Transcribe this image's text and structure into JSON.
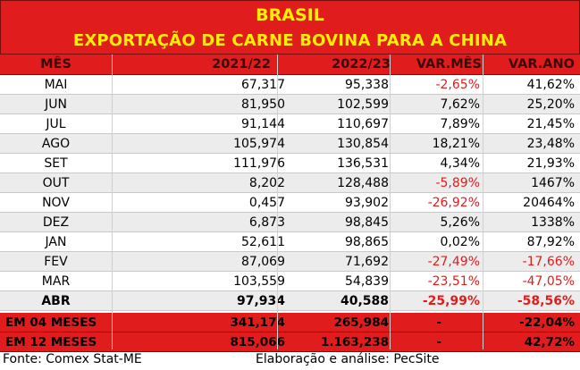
{
  "header": {
    "title": "BRASIL",
    "subtitle": "EXPORTAÇÃO DE CARNE BOVINA PARA A CHINA"
  },
  "columns": [
    "MÊS",
    "2021/22",
    "2022/23",
    "VAR.MÊS",
    "VAR.ANO"
  ],
  "rows": [
    {
      "mes": "MAI",
      "a": "67,317",
      "b": "95,338",
      "var_mes": "-2,65%",
      "var_ano": "41,62%"
    },
    {
      "mes": "JUN",
      "a": "81,950",
      "b": "102,599",
      "var_mes": "7,62%",
      "var_ano": "25,20%"
    },
    {
      "mes": "JUL",
      "a": "91,144",
      "b": "110,697",
      "var_mes": "7,89%",
      "var_ano": "21,45%"
    },
    {
      "mes": "AGO",
      "a": "105,974",
      "b": "130,854",
      "var_mes": "18,21%",
      "var_ano": "23,48%"
    },
    {
      "mes": "SET",
      "a": "111,976",
      "b": "136,531",
      "var_mes": "4,34%",
      "var_ano": "21,93%"
    },
    {
      "mes": "OUT",
      "a": "8,202",
      "b": "128,488",
      "var_mes": "-5,89%",
      "var_ano": "1467%"
    },
    {
      "mes": "NOV",
      "a": "0,457",
      "b": "93,902",
      "var_mes": "-26,92%",
      "var_ano": "20464%"
    },
    {
      "mes": "DEZ",
      "a": "6,873",
      "b": "98,845",
      "var_mes": "5,26%",
      "var_ano": "1338%"
    },
    {
      "mes": "JAN",
      "a": "52,611",
      "b": "98,865",
      "var_mes": "0,02%",
      "var_ano": "87,92%"
    },
    {
      "mes": "FEV",
      "a": "87,069",
      "b": "71,692",
      "var_mes": "-27,49%",
      "var_ano": "-17,66%"
    },
    {
      "mes": "MAR",
      "a": "103,559",
      "b": "54,839",
      "var_mes": "-23,51%",
      "var_ano": "-47,05%"
    },
    {
      "mes": "ABR",
      "a": "97,934",
      "b": "40,588",
      "var_mes": "-25,99%",
      "var_ano": "-58,56%"
    }
  ],
  "totals": [
    {
      "mes": "EM 04 MESES",
      "a": "341,174",
      "b": "265,984",
      "var_mes": "-",
      "var_ano": "-22,04%"
    },
    {
      "mes": "EM 12 MESES",
      "a": "815,066",
      "b": "1.163,238",
      "var_mes": "-",
      "var_ano": "42,72%"
    }
  ],
  "footer": {
    "source": "Fonte: Comex Stat-ME",
    "credit": "Elaboração e análise: PecSite"
  },
  "colors": {
    "accent_red": "#e11c1c",
    "title_yellow": "#ffef00",
    "negative": "#e11c1c"
  }
}
